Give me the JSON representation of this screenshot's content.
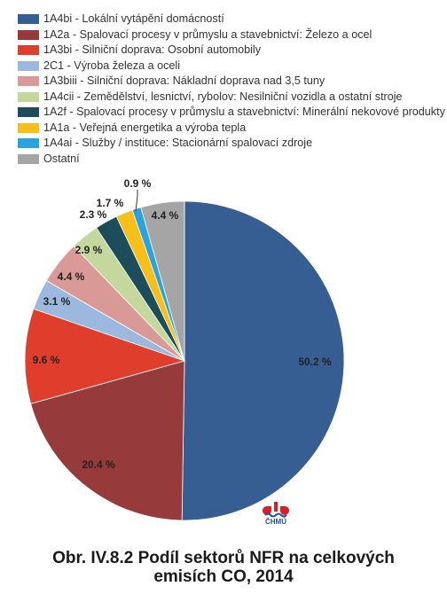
{
  "chart_data": {
    "type": "pie",
    "legend_placement": "top-left",
    "slices": [
      {
        "label": "1A4bi - Lokální vytápění domácností",
        "value": 50.2,
        "value_label": "50.2 %",
        "color": "#375e92"
      },
      {
        "label": "1A2a - Spalovací procesy v průmyslu a stavebnictví: Železo a ocel",
        "value": 20.4,
        "value_label": "20.4 %",
        "color": "#973a3b"
      },
      {
        "label": "1A3bi - Silniční doprava: Osobní automobily",
        "value": 9.6,
        "value_label": "9.6 %",
        "color": "#e03e2c"
      },
      {
        "label": "2C1 - Výroba železa a oceli",
        "value": 3.1,
        "value_label": "3.1 %",
        "color": "#9cb8de"
      },
      {
        "label": "1A3biii - Silniční doprava: Nákladní doprava nad 3,5 tuny",
        "value": 4.4,
        "value_label": "4.4 %",
        "color": "#d99a97"
      },
      {
        "label": "1A4cii - Zemědělství, lesnictví, rybolov: Nesilniční vozidla a ostatní stroje",
        "value": 2.9,
        "value_label": "2.9 %",
        "color": "#c4d79c"
      },
      {
        "label": "1A2f - Spalovací procesy v průmyslu a stavebnictví: Minerální nekovové produkty",
        "value": 2.3,
        "value_label": "2.3 %",
        "color": "#1c4d5a"
      },
      {
        "label": "1A1a - Veřejná energetika a výroba tepla",
        "value": 1.7,
        "value_label": "1.7 %",
        "color": "#f7bf1a"
      },
      {
        "label": "1A4ai - Služby / instituce: Stacionární spalovací zdroje",
        "value": 0.9,
        "value_label": "0.9 %",
        "color": "#2ca3de"
      },
      {
        "label": "Ostatní",
        "value": 4.4,
        "value_label": "4.4 %",
        "color": "#a5a5a5"
      }
    ]
  },
  "caption": {
    "line1": "Obr. IV.8.2  Podíl sektorů NFR na celkových",
    "line2": "emisích CO, 2014"
  },
  "logo": {
    "text": "ČHMÚ",
    "colors": {
      "red": "#d71f26",
      "blue": "#1f4e9c"
    }
  }
}
